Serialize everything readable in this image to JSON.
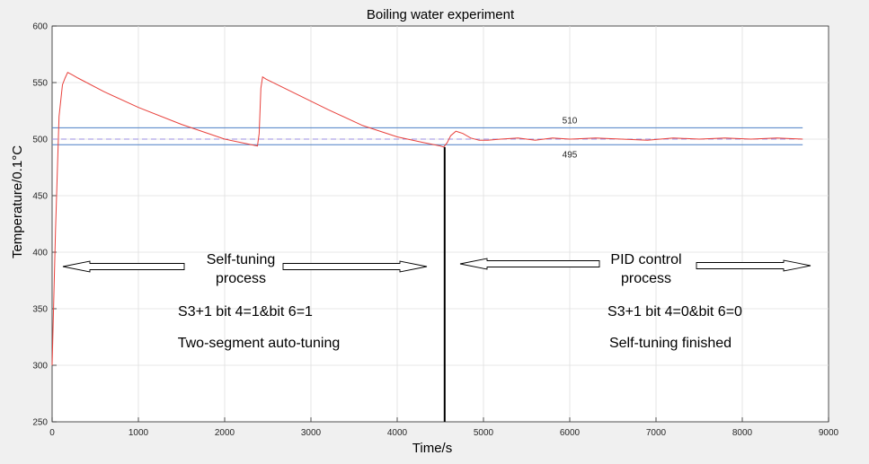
{
  "chart_data": {
    "type": "line",
    "title": "Boiling water experiment",
    "xlabel": "Time/s",
    "ylabel": "Temperature/0.1°C",
    "xlim": [
      0,
      9000
    ],
    "ylim": [
      250,
      600
    ],
    "xticks": [
      0,
      1000,
      2000,
      3000,
      4000,
      5000,
      6000,
      7000,
      8000,
      9000
    ],
    "yticks": [
      250,
      300,
      350,
      400,
      450,
      500,
      550,
      600
    ],
    "grid": true,
    "series": [
      {
        "color": "#e8413c",
        "x": [
          0,
          40,
          80,
          120,
          150,
          180,
          230,
          300,
          600,
          1000,
          1500,
          2000,
          2380,
          2400,
          2420,
          2440,
          2480,
          2800,
          3200,
          3600,
          4000,
          4300,
          4500,
          4540,
          4580,
          4620,
          4680,
          4760,
          4850,
          4950,
          5050,
          5200,
          5400,
          5600,
          5800,
          6000,
          6300,
          6600,
          6900,
          7200,
          7500,
          7800,
          8100,
          8400,
          8700
        ],
        "y": [
          300,
          420,
          520,
          548,
          554,
          559,
          557,
          554,
          542,
          528,
          513,
          500,
          494,
          505,
          545,
          555,
          553,
          541,
          526,
          512,
          502,
          497,
          494,
          493,
          497,
          503,
          507,
          505,
          501,
          499,
          499,
          500,
          501,
          499,
          501,
          500,
          501,
          500,
          499,
          501,
          500,
          501,
          500,
          501,
          500
        ]
      }
    ],
    "reference_lines": [
      {
        "y": 510,
        "label": "510",
        "color": "#4c7fc6",
        "style": "solid"
      },
      {
        "y": 495,
        "label": "495",
        "color": "#4c7fc6",
        "style": "solid"
      },
      {
        "y": 500,
        "color": "#9b8fe0",
        "style": "dashed"
      }
    ],
    "divider_x": 4550,
    "annotations": {
      "left_title_1": "Self-tuning",
      "left_title_2": "process",
      "left_line_1": "S3+1  bit 4=1&bit 6=1",
      "left_line_2": "Two-segment auto-tuning",
      "right_title_1": "PID control",
      "right_title_2": "process",
      "right_line_1": "S3+1  bit 4=0&bit 6=0",
      "right_line_2": "Self-tuning finished"
    }
  }
}
